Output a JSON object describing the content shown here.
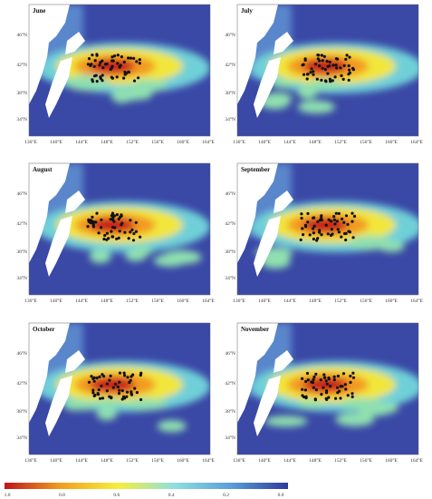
{
  "panels": [
    {
      "title": "June"
    },
    {
      "title": "July"
    },
    {
      "title": "August"
    },
    {
      "title": "September"
    },
    {
      "title": "October"
    },
    {
      "title": "November"
    }
  ],
  "lat_ticks": [
    "46°N",
    "42°N",
    "38°N",
    "34°N"
  ],
  "lon_ticks": [
    "136°E",
    "140°E",
    "144°E",
    "148°E",
    "152°E",
    "156°E",
    "160°E",
    "164°E"
  ],
  "colorbar": {
    "labels": [
      "1.0",
      "0.8",
      "0.6",
      "0.4",
      "0.2",
      "0.0"
    ]
  }
}
